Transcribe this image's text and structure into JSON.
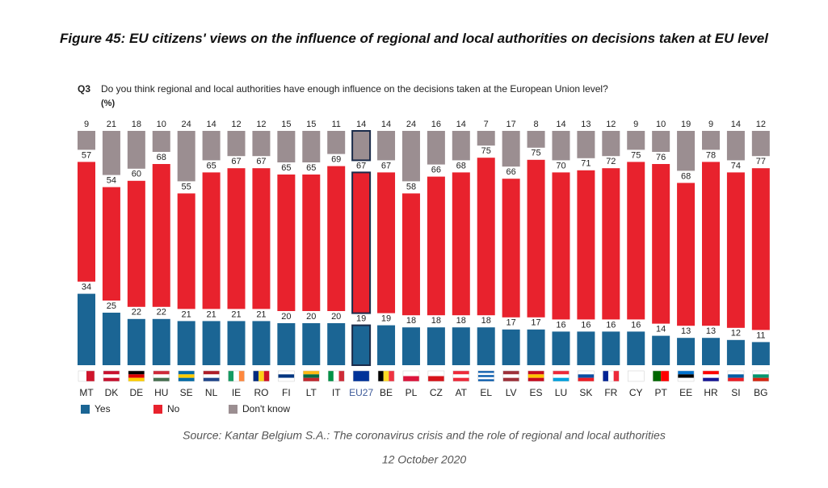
{
  "chart_data": {
    "type": "stacked_bar",
    "title": "Figure 45: EU citizens' views on the influence of regional and local authorities on decisions taken at EU level",
    "question_label": "Q3",
    "question": "Do you think regional and local authorities have enough influence on the decisions taken at the European Union level?",
    "unit_label": "(%)",
    "categories": [
      "MT",
      "DK",
      "DE",
      "HU",
      "SE",
      "NL",
      "IE",
      "RO",
      "FI",
      "LT",
      "IT",
      "EU27",
      "BE",
      "PL",
      "CZ",
      "AT",
      "EL",
      "LV",
      "ES",
      "LU",
      "SK",
      "FR",
      "CY",
      "PT",
      "EE",
      "HR",
      "SI",
      "BG"
    ],
    "highlight": "EU27",
    "series": [
      {
        "name": "Yes",
        "color": "#1b6594",
        "values": [
          34,
          25,
          22,
          22,
          21,
          21,
          21,
          21,
          20,
          20,
          20,
          19,
          19,
          18,
          18,
          18,
          18,
          17,
          17,
          16,
          16,
          16,
          16,
          14,
          13,
          13,
          12,
          11
        ]
      },
      {
        "name": "No",
        "color": "#e8222d",
        "values": [
          57,
          54,
          60,
          68,
          55,
          65,
          67,
          67,
          65,
          65,
          69,
          67,
          67,
          58,
          66,
          68,
          75,
          66,
          75,
          70,
          71,
          72,
          75,
          76,
          68,
          78,
          74,
          77
        ]
      },
      {
        "name": "Don't know",
        "color": "#9b8e91",
        "values": [
          9,
          21,
          18,
          10,
          24,
          14,
          12,
          12,
          15,
          15,
          11,
          14,
          14,
          24,
          16,
          14,
          7,
          17,
          8,
          14,
          13,
          12,
          9,
          10,
          19,
          9,
          14,
          12
        ]
      }
    ],
    "source": "Source: Kantar Belgium S.A.: The coronavirus crisis and the role of regional and local authorities",
    "date": "12 October 2020"
  }
}
